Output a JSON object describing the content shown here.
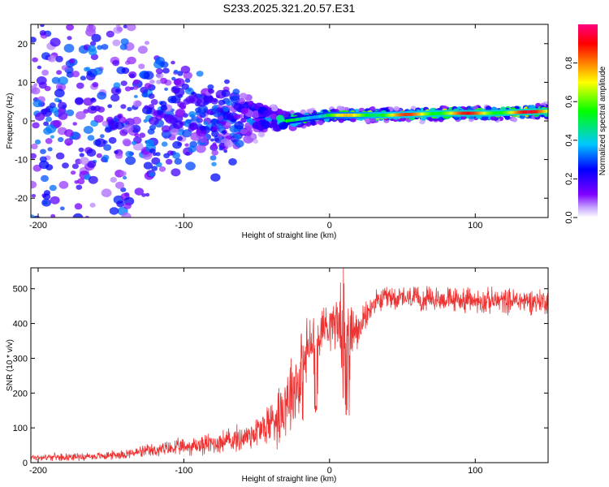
{
  "title": "S233.2025.321.20.57.E31",
  "chart_data": [
    {
      "type": "heatmap",
      "name": "spectrogram",
      "xlabel": "Height of straight line (km)",
      "ylabel": "Frequency (Hz)",
      "xlim": [
        -205,
        150
      ],
      "ylim": [
        -25,
        25
      ],
      "xticks": [
        -200,
        -100,
        0,
        100
      ],
      "yticks": [
        -20,
        -10,
        0,
        10,
        20
      ],
      "xtick_labels": [
        "-200",
        "-100",
        "0",
        "100"
      ],
      "ytick_labels": [
        "-20",
        "-10",
        "0",
        "10",
        "20"
      ],
      "colorbar": {
        "label": "Normalized spectral amplitude",
        "range": [
          0,
          1
        ],
        "ticks": [
          0.0,
          0.2,
          0.4,
          0.6,
          0.8
        ],
        "tick_labels": [
          "0.0",
          "0.2",
          "0.4",
          "0.6",
          "0.8"
        ],
        "colormap": [
          "#ffffff",
          "#7f00ff",
          "#0000ff",
          "#00c8ff",
          "#00ff00",
          "#ffff00",
          "#ff8000",
          "#ff0000",
          "#ff0080"
        ]
      },
      "ridge": [
        {
          "x": -205,
          "y": 3,
          "amp": 0.08,
          "spread": 28
        },
        {
          "x": -150,
          "y": 3,
          "amp": 0.15,
          "spread": 20
        },
        {
          "x": -120,
          "y": 2,
          "amp": 0.25,
          "spread": 10
        },
        {
          "x": -100,
          "y": 1.5,
          "amp": 0.3,
          "spread": 7
        },
        {
          "x": -80,
          "y": 0.5,
          "amp": 0.3,
          "spread": 6
        },
        {
          "x": -60,
          "y": 0.5,
          "amp": 0.3,
          "spread": 4
        },
        {
          "x": -40,
          "y": 0.5,
          "amp": 0.35,
          "spread": 2
        },
        {
          "x": -30,
          "y": 0,
          "amp": 0.55,
          "spread": 1.2
        },
        {
          "x": -10,
          "y": 1,
          "amp": 0.6,
          "spread": 1.0
        },
        {
          "x": 0,
          "y": 1.5,
          "amp": 0.7,
          "spread": 0.9
        },
        {
          "x": 40,
          "y": 1.5,
          "amp": 0.85,
          "spread": 0.9
        },
        {
          "x": 80,
          "y": 2,
          "amp": 0.9,
          "spread": 0.9
        },
        {
          "x": 110,
          "y": 2,
          "amp": 0.9,
          "spread": 0.9
        },
        {
          "x": 150,
          "y": 2.5,
          "amp": 0.95,
          "spread": 0.9
        }
      ]
    },
    {
      "type": "line",
      "name": "snr",
      "xlabel": "Height of straight line (km)",
      "ylabel": "SNR (10 * v/v)",
      "xlim": [
        -205,
        150
      ],
      "ylim": [
        0,
        560
      ],
      "xticks": [
        -200,
        -100,
        0,
        100
      ],
      "yticks": [
        0,
        100,
        200,
        300,
        400,
        500
      ],
      "xtick_labels": [
        "-200",
        "-100",
        "0",
        "100"
      ],
      "ytick_labels": [
        "0",
        "100",
        "200",
        "300",
        "400",
        "500"
      ],
      "color": "#ee3333",
      "x": [
        -205,
        -160,
        -140,
        -120,
        -100,
        -80,
        -60,
        -45,
        -35,
        -28,
        -22,
        -18,
        -15,
        -10,
        -5,
        0,
        5,
        10,
        15,
        20,
        25,
        30,
        40,
        60,
        80,
        100,
        120,
        150
      ],
      "y": [
        15,
        18,
        25,
        35,
        45,
        55,
        70,
        100,
        140,
        200,
        230,
        260,
        330,
        350,
        390,
        400,
        410,
        380,
        370,
        380,
        420,
        455,
        475,
        470,
        470,
        465,
        465,
        465
      ],
      "noise": [
        8,
        10,
        12,
        18,
        22,
        28,
        35,
        50,
        80,
        100,
        110,
        120,
        80,
        70,
        60,
        60,
        70,
        120,
        90,
        40,
        35,
        30,
        30,
        30,
        30,
        32,
        32,
        32
      ]
    }
  ]
}
